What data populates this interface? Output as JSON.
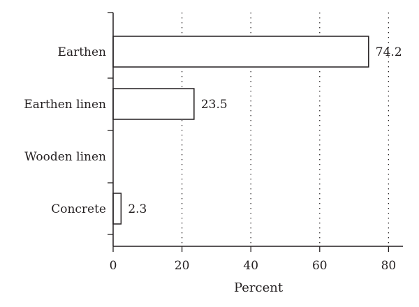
{
  "chart_data": {
    "type": "bar",
    "orientation": "horizontal",
    "categories": [
      "Earthen",
      "Earthen linen",
      "Wooden linen",
      "Concrete"
    ],
    "values": [
      74.2,
      23.5,
      null,
      2.3
    ],
    "data_labels": [
      "74.2",
      "23.5",
      "",
      "2.3"
    ],
    "xlabel": "Percent",
    "ylabel": "",
    "xlim": [
      0,
      85
    ],
    "xticks": [
      0,
      20,
      40,
      60,
      80
    ],
    "grid": "vertical dotted",
    "colors": {
      "bar_fill": "#ffffff",
      "stroke": "#231f20"
    }
  }
}
